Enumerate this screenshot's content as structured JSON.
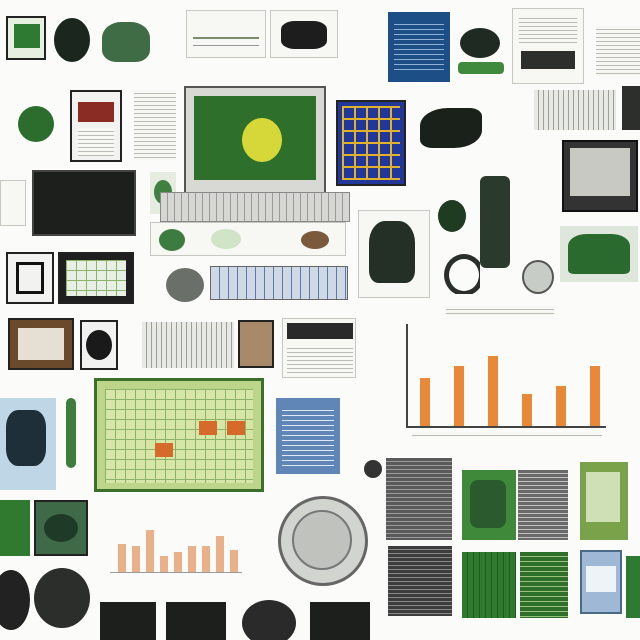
{
  "collage": {
    "description": "",
    "tiles": [
      {
        "name": "thumb-green-device"
      },
      {
        "name": "thumb-dark-bag"
      },
      {
        "name": "thumb-green-cap"
      },
      {
        "name": "thumb-chart-panel"
      },
      {
        "name": "thumb-black-object"
      },
      {
        "name": "thumb-blue-document"
      },
      {
        "name": "thumb-green-helmet"
      },
      {
        "name": "thumb-spec-sheet"
      },
      {
        "name": "thumb-green-bag"
      },
      {
        "name": "thumb-red-brochure"
      },
      {
        "name": "thumb-laptop-screen"
      },
      {
        "name": "thumb-tile-board"
      },
      {
        "name": "thumb-dark-figure"
      },
      {
        "name": "thumb-monitor"
      },
      {
        "name": "thumb-black-panel"
      },
      {
        "name": "thumb-green-sculpture"
      },
      {
        "name": "thumb-plant-image"
      },
      {
        "name": "thumb-bar-chart"
      },
      {
        "name": "thumb-calendar-board"
      },
      {
        "name": "thumb-blue-sheet"
      },
      {
        "name": "thumb-round-seal"
      },
      {
        "name": "thumb-orange-bar-chart"
      },
      {
        "name": "thumb-green-keyboard"
      },
      {
        "name": "thumb-helmets"
      }
    ]
  },
  "labels": {
    "seal_text": "",
    "chart_caption": ""
  }
}
